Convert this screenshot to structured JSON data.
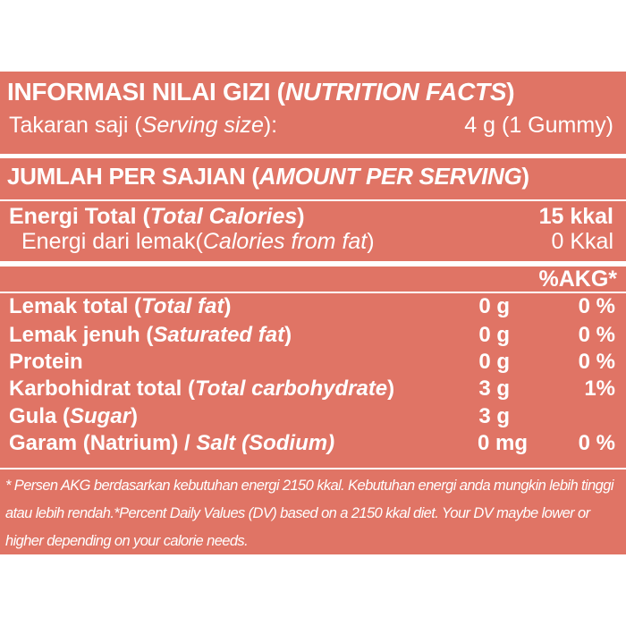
{
  "header": {
    "title_id": "INFORMASI NILAI GIZI (",
    "title_en": "NUTRITION FACTS",
    "title_close": ")"
  },
  "serving": {
    "label_id": "Takaran saji (",
    "label_en": "Serving size",
    "label_close": "):",
    "value": "4 g (1 Gummy)"
  },
  "amount": {
    "label_id": "JUMLAH PER SAJIAN (",
    "label_en": "AMOUNT PER SERVING",
    "label_close": ")"
  },
  "energy": {
    "label_id": "Energi Total (",
    "label_en": "Total Calories",
    "label_close": ")",
    "value": "15 kkal"
  },
  "fat_energy": {
    "label_id": "Energi dari lemak(",
    "label_en": "Calories from fat",
    "label_close": ")",
    "value": "0 Kkal"
  },
  "akg_header": "%AKG*",
  "nutrients": [
    {
      "label_id": "Lemak total (",
      "label_en": "Total fat",
      "label_close": ")",
      "amount": "0 g",
      "percent": "0 %"
    },
    {
      "label_id": "Lemak jenuh (",
      "label_en": "Saturated fat",
      "label_close": ")",
      "amount": "0 g",
      "percent": "0 %"
    },
    {
      "label_id": "Protein",
      "label_en": "",
      "label_close": "",
      "amount": "0 g",
      "percent": "0 %"
    },
    {
      "label_id": "Karbohidrat total (",
      "label_en": "Total carbohydrate",
      "label_close": ")",
      "amount": "3 g",
      "percent": "1%"
    },
    {
      "label_id": "Gula (",
      "label_en": "Sugar",
      "label_close": ")",
      "amount": "3 g",
      "percent": ""
    },
    {
      "label_id": "Garam (Natrium) / ",
      "label_en": "Salt (Sodium)",
      "label_close": "",
      "amount": "0 mg",
      "percent": "0 %"
    }
  ],
  "footnote": "* Persen AKG berdasarkan kebutuhan energi 2150 kkal. Kebutuhan energi anda mungkin lebih tinggi atau lebih rendah.*Percent Daily Values (DV) based on a 2150 kkal diet. Your DV maybe lower or higher depending on your calorie needs.",
  "colors": {
    "panel": "#e07465",
    "text": "#ffffff"
  }
}
